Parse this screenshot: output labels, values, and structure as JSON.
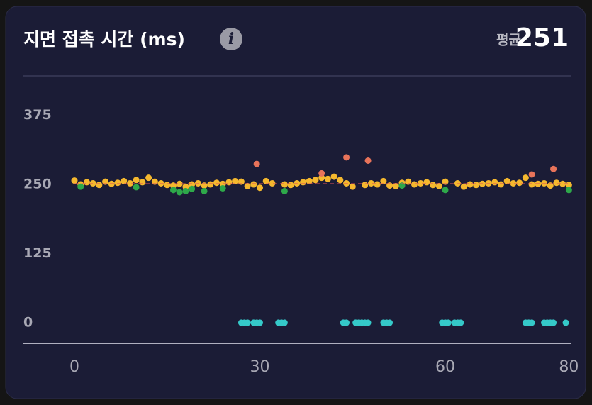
{
  "chart_data": {
    "type": "scatter",
    "title": "지면 접촉 시간 (ms)",
    "info_icon": "i",
    "mean_label": "평균",
    "mean": 251,
    "mean_color": "#e0505a",
    "xlim": [
      -8.26,
      80.3
    ],
    "ylim": [
      -36,
      445
    ],
    "xticks": [
      0,
      30,
      60,
      80
    ],
    "yticks": [
      0,
      125,
      250,
      375
    ],
    "grid": false,
    "series": [
      {
        "color": "#f5b82e",
        "x": [
          0,
          1,
          2,
          3,
          4,
          5,
          6,
          7,
          8,
          9,
          10,
          11,
          12,
          13,
          14,
          15,
          16,
          17,
          18,
          19,
          20,
          21,
          22,
          23,
          24,
          25,
          26,
          27,
          28,
          29,
          30,
          31,
          32,
          34,
          35,
          36,
          37,
          38,
          39,
          40,
          41,
          42,
          43,
          44,
          45,
          47,
          48,
          49,
          50,
          51,
          52,
          53,
          54,
          55,
          56,
          57,
          58,
          59,
          60,
          62,
          63,
          64,
          65,
          66,
          67,
          68,
          69,
          70,
          71,
          72,
          73,
          74,
          75,
          76,
          77,
          78,
          79,
          80
        ],
        "values": [
          257,
          250,
          254,
          252,
          249,
          255,
          251,
          253,
          256,
          252,
          258,
          254,
          262,
          255,
          252,
          249,
          248,
          251,
          246,
          250,
          252,
          248,
          250,
          253,
          251,
          254,
          256,
          255,
          247,
          250,
          244,
          256,
          252,
          250,
          249,
          252,
          254,
          256,
          258,
          262,
          260,
          264,
          258,
          252,
          246,
          249,
          252,
          250,
          256,
          248,
          247,
          253,
          255,
          250,
          252,
          254,
          249,
          247,
          255,
          252,
          246,
          250,
          249,
          251,
          252,
          254,
          250,
          256,
          252,
          253,
          262,
          250,
          251,
          252,
          248,
          253,
          251,
          249
        ]
      },
      {
        "color": "#2ea84a",
        "x": [
          1,
          10,
          16,
          17,
          18,
          19,
          21,
          24,
          34,
          53,
          60,
          80
        ],
        "values": [
          246,
          245,
          240,
          236,
          238,
          242,
          238,
          243,
          238,
          248,
          240,
          240
        ]
      },
      {
        "color": "#e8735a",
        "x": [
          29.5,
          40,
          44,
          47.5,
          74,
          77.5
        ],
        "values": [
          287,
          270,
          299,
          293,
          268,
          278
        ]
      },
      {
        "color": "#35c9c9",
        "x": [
          27,
          27.5,
          28,
          29,
          29.5,
          30,
          33,
          33.5,
          34,
          43.5,
          44,
          45.5,
          46,
          46.5,
          47,
          47.5,
          50,
          50.5,
          51,
          59.5,
          60,
          60.5,
          61.5,
          62,
          62.5,
          73,
          73.5,
          74,
          76,
          76.5,
          77,
          77.5,
          79.5
        ],
        "values": [
          0,
          0,
          0,
          0,
          0,
          0,
          0,
          0,
          0,
          0,
          0,
          0,
          0,
          0,
          0,
          0,
          0,
          0,
          0,
          0,
          0,
          0,
          0,
          0,
          0,
          0,
          0,
          0,
          0,
          0,
          0,
          0,
          0
        ]
      }
    ]
  }
}
